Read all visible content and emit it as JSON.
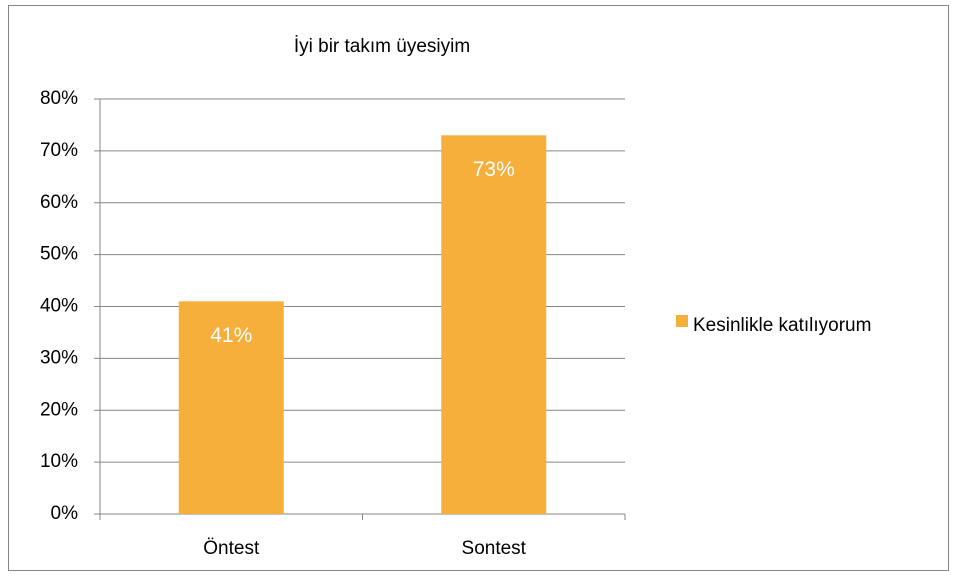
{
  "chart_data": {
    "type": "bar",
    "title": "İyi bir takım üyesiyim",
    "categories": [
      "Öntest",
      "Sontest"
    ],
    "series": [
      {
        "name": "Kesinlikle katılıyorum",
        "color": "#f5af3a",
        "values": [
          41,
          73
        ],
        "value_labels": [
          "41%",
          "73%"
        ]
      }
    ],
    "ylim": [
      0,
      80
    ],
    "yticks": [
      {
        "value": 0,
        "label": "0%"
      },
      {
        "value": 10,
        "label": "10%"
      },
      {
        "value": 20,
        "label": "20%"
      },
      {
        "value": 30,
        "label": "30%"
      },
      {
        "value": 40,
        "label": "40%"
      },
      {
        "value": 50,
        "label": "50%"
      },
      {
        "value": 60,
        "label": "60%"
      },
      {
        "value": 70,
        "label": "70%"
      },
      {
        "value": 80,
        "label": "80%"
      }
    ],
    "grid": true,
    "legend": "right"
  }
}
